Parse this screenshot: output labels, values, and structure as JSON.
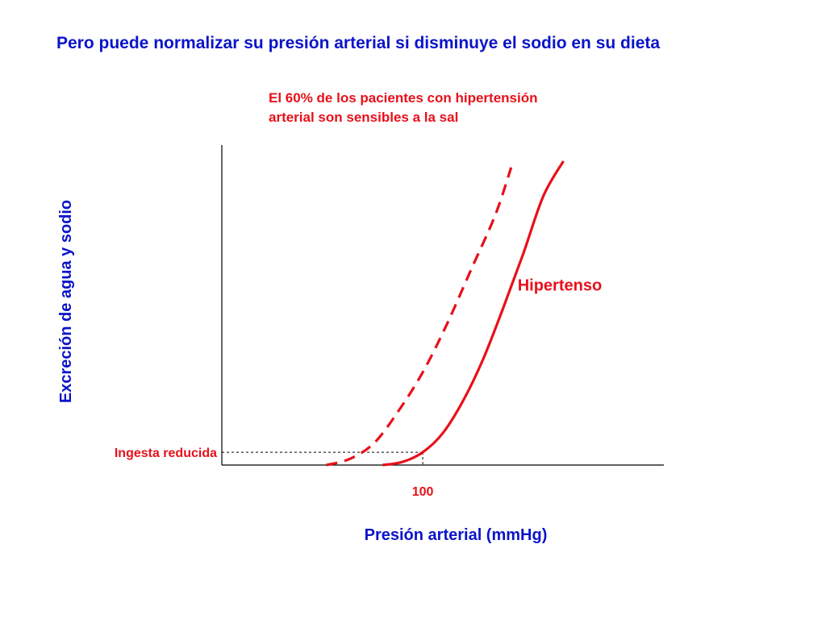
{
  "slide": {
    "title": "Pero puede normalizar su presión arterial si disminuye el sodio en su dieta",
    "note_lines": [
      "El 60% de los pacientes con hipertensión",
      "arterial son sensibles a la sal"
    ]
  },
  "colors": {
    "title": "#0b14c8",
    "curves": "#e8101a",
    "axes": "#000000"
  },
  "chart_data": {
    "type": "line",
    "title": "",
    "xlabel": "Presión arterial (mmHg)",
    "ylabel": "Excreción de agua y sodio",
    "x_ticks": [
      "100"
    ],
    "x_tick_values": [
      100
    ],
    "y_reference_label": "Ingesta reducida",
    "y_reference_value": 0.4,
    "xlim": [
      50,
      160
    ],
    "ylim": [
      0,
      10
    ],
    "grid": false,
    "series": [
      {
        "name": "Hipertenso",
        "style": "solid",
        "points": [
          [
            90,
            0.0
          ],
          [
            95,
            0.1
          ],
          [
            100,
            0.4
          ],
          [
            105,
            1.0
          ],
          [
            110,
            2.0
          ],
          [
            115,
            3.3
          ],
          [
            120,
            4.9
          ],
          [
            125,
            6.6
          ],
          [
            130,
            8.4
          ],
          [
            135,
            9.5
          ]
        ]
      },
      {
        "name": "",
        "style": "dashed",
        "points": [
          [
            76,
            0.0
          ],
          [
            82,
            0.2
          ],
          [
            88,
            0.7
          ],
          [
            94,
            1.7
          ],
          [
            100,
            2.9
          ],
          [
            106,
            4.4
          ],
          [
            112,
            6.1
          ],
          [
            118,
            7.8
          ],
          [
            122,
            9.3
          ]
        ]
      }
    ]
  }
}
